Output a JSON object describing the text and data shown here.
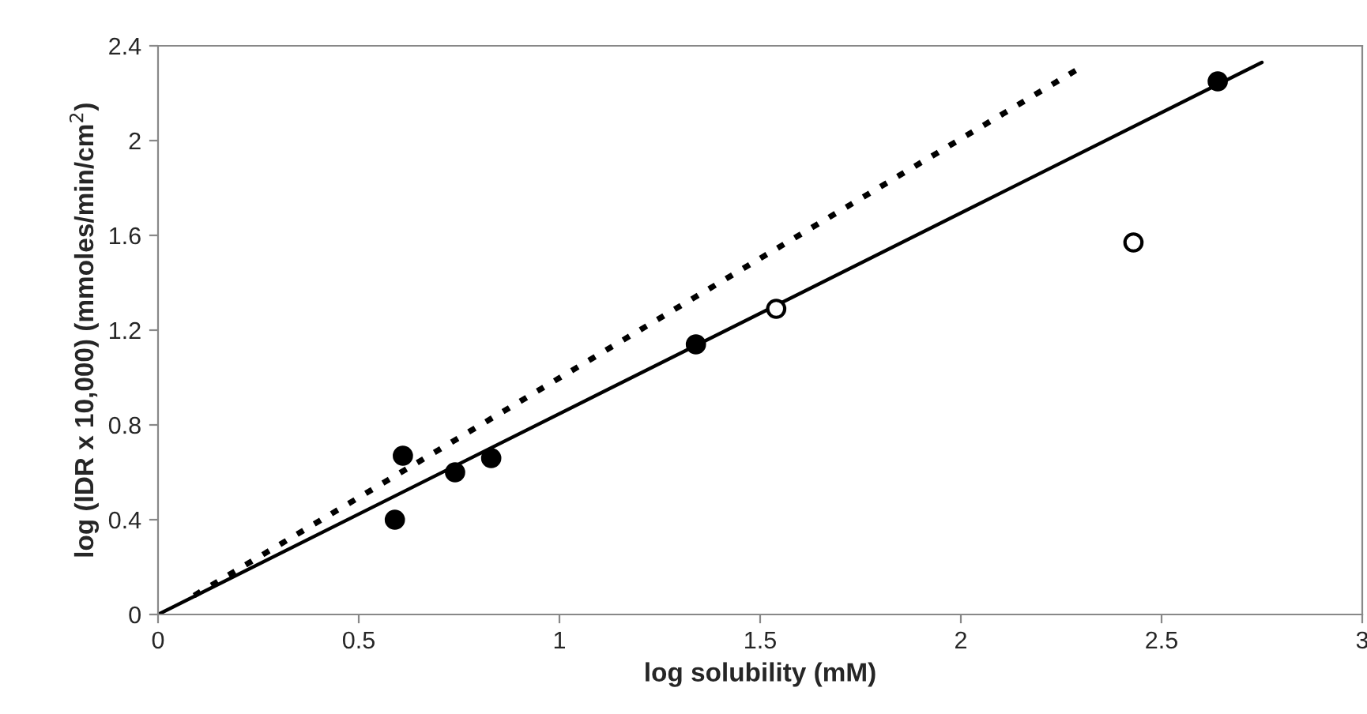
{
  "chart_data": {
    "type": "scatter",
    "xlabel": "log solubility (mM)",
    "ylabel": "log (IDR x 10,000) (mmoles/min/cm$^{2}$)",
    "xlim": [
      0,
      3
    ],
    "xticks": [
      0,
      0.5,
      1,
      1.5,
      2,
      2.5,
      3
    ],
    "ylim": [
      0,
      2.4
    ],
    "yticks": [
      0,
      0.4,
      0.8,
      1.2,
      1.6,
      2,
      2.4
    ],
    "grid": false,
    "series": [
      {
        "marker": "circle",
        "color": "#000000",
        "x": [
          0.59,
          0.61,
          0.74,
          0.83,
          1.34,
          2.64
        ],
        "values": [
          0.4,
          0.67,
          0.6,
          0.66,
          1.14,
          2.25
        ]
      },
      {
        "marker": "circle",
        "color": "#ffffff",
        "x": [
          1.54,
          2.43
        ],
        "values": [
          1.29,
          1.57
        ]
      },
      {
        "type": "line",
        "line_style": "solid",
        "color": "#000000",
        "x": [
          0,
          2.75
        ],
        "values": [
          0,
          2.33
        ]
      },
      {
        "type": "line",
        "line_style": "dotted",
        "color": "#000000",
        "x": [
          0.09,
          2.3
        ],
        "values": [
          0.08,
          2.31
        ]
      }
    ]
  }
}
